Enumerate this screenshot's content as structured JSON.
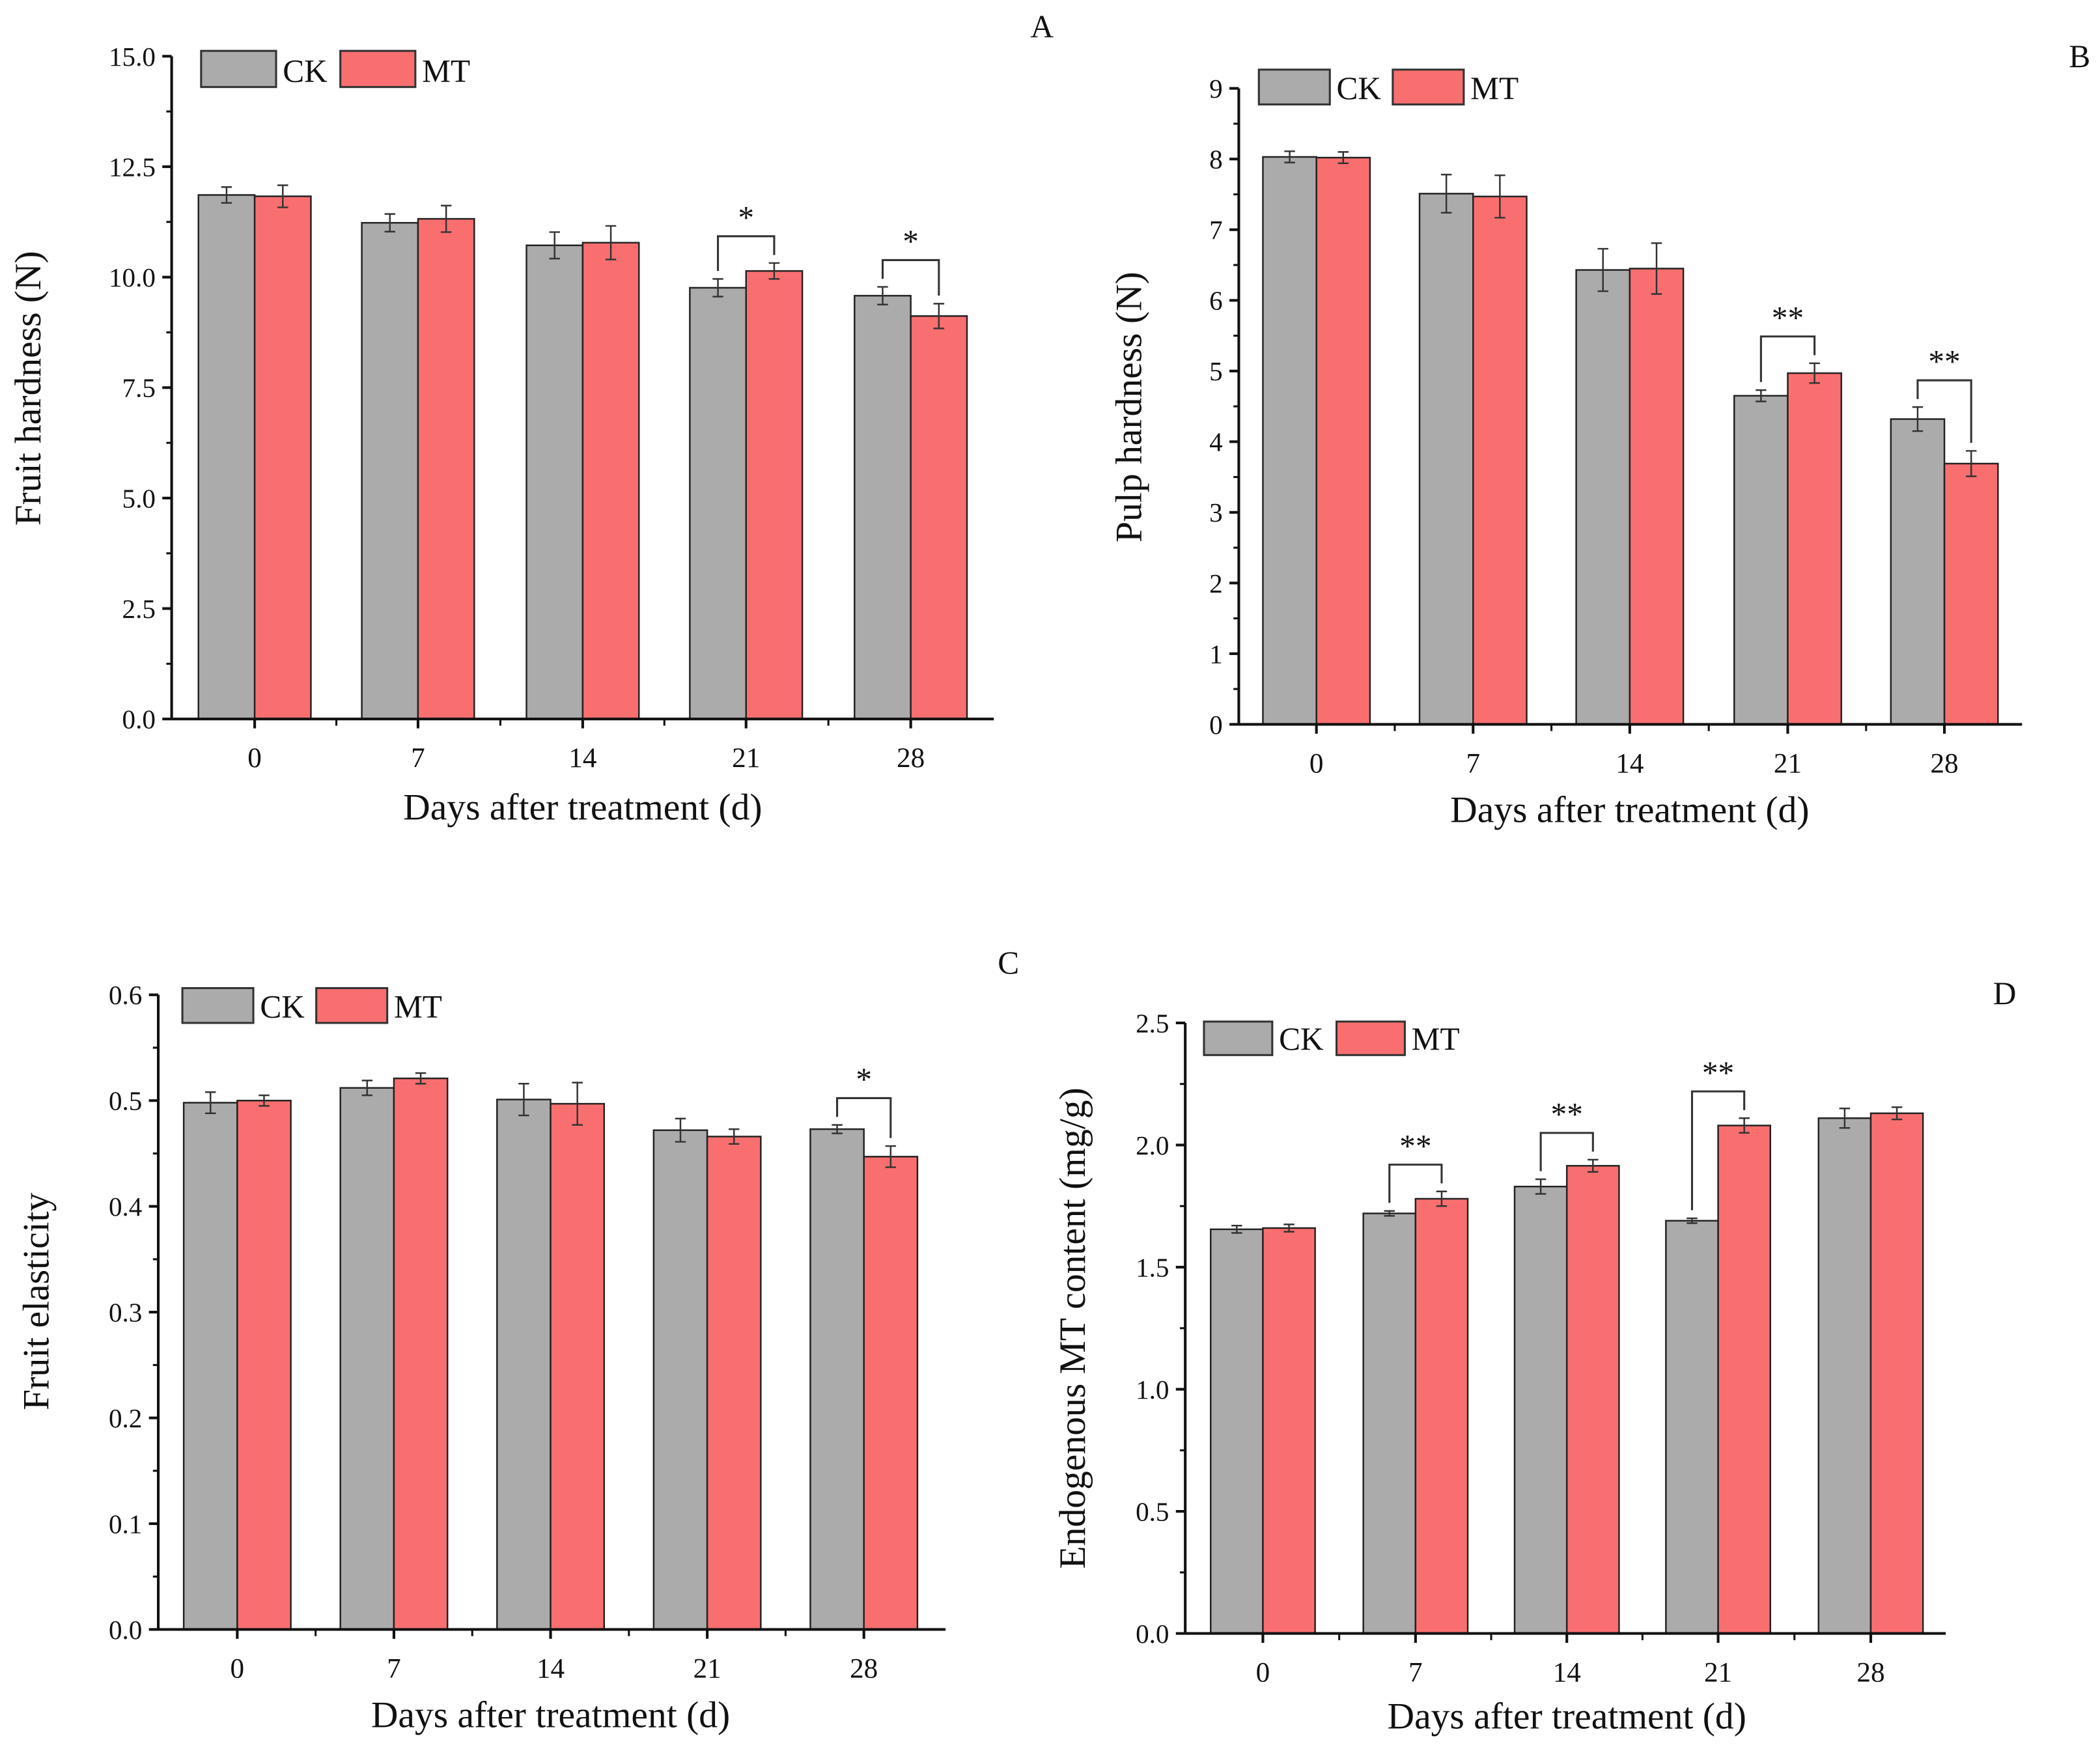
{
  "colors": {
    "CK": "#ababab",
    "MT": "#f96f70",
    "axis": "#111111"
  },
  "legend": [
    "CK",
    "MT"
  ],
  "chart_data": [
    {
      "panel": "A",
      "type": "bar",
      "title": "",
      "xlabel": "Days after treatment (d)",
      "ylabel": "Fruit hardness (N)",
      "categories": [
        "0",
        "7",
        "14",
        "21",
        "28"
      ],
      "ylim": [
        0,
        15
      ],
      "yticks": [
        "0.0",
        "2.5",
        "5.0",
        "7.5",
        "10.0",
        "12.5",
        "15.0"
      ],
      "series": [
        {
          "name": "CK",
          "values": [
            11.86,
            11.23,
            10.72,
            9.76,
            9.58
          ],
          "errors": [
            0.18,
            0.2,
            0.3,
            0.2,
            0.2
          ]
        },
        {
          "name": "MT",
          "values": [
            11.83,
            11.32,
            10.78,
            10.14,
            9.12
          ],
          "errors": [
            0.25,
            0.3,
            0.38,
            0.18,
            0.28
          ]
        }
      ],
      "significance": [
        {
          "category": "21",
          "label": "*"
        },
        {
          "category": "28",
          "label": "*"
        }
      ],
      "legend_position": "top-left"
    },
    {
      "panel": "B",
      "type": "bar",
      "title": "",
      "xlabel": "Days after treatment (d)",
      "ylabel": "Pulp hardness (N)",
      "categories": [
        "0",
        "7",
        "14",
        "21",
        "28"
      ],
      "ylim": [
        0,
        9
      ],
      "yticks": [
        "0",
        "1",
        "2",
        "3",
        "4",
        "5",
        "6",
        "7",
        "8",
        "9"
      ],
      "series": [
        {
          "name": "CK",
          "values": [
            8.03,
            7.51,
            6.43,
            4.65,
            4.32
          ],
          "errors": [
            0.08,
            0.27,
            0.3,
            0.08,
            0.17
          ]
        },
        {
          "name": "MT",
          "values": [
            8.02,
            7.47,
            6.45,
            4.97,
            3.69
          ],
          "errors": [
            0.08,
            0.3,
            0.36,
            0.14,
            0.18
          ]
        }
      ],
      "significance": [
        {
          "category": "21",
          "label": "**"
        },
        {
          "category": "28",
          "label": "**"
        }
      ],
      "legend_position": "top-left"
    },
    {
      "panel": "C",
      "type": "bar",
      "title": "",
      "xlabel": "Days after treatment (d)",
      "ylabel": "Fruit elasticity",
      "categories": [
        "0",
        "7",
        "14",
        "21",
        "28"
      ],
      "ylim": [
        0,
        0.6
      ],
      "yticks": [
        "0.0",
        "0.1",
        "0.2",
        "0.3",
        "0.4",
        "0.5",
        "0.6"
      ],
      "series": [
        {
          "name": "CK",
          "values": [
            0.498,
            0.512,
            0.501,
            0.472,
            0.473
          ],
          "errors": [
            0.01,
            0.007,
            0.015,
            0.011,
            0.004
          ]
        },
        {
          "name": "MT",
          "values": [
            0.5,
            0.521,
            0.497,
            0.466,
            0.447
          ],
          "errors": [
            0.005,
            0.005,
            0.02,
            0.007,
            0.01
          ]
        }
      ],
      "significance": [
        {
          "category": "28",
          "label": "*"
        }
      ],
      "legend_position": "top-left"
    },
    {
      "panel": "D",
      "type": "bar",
      "title": "",
      "xlabel": "Days after treatment (d)",
      "ylabel": "Endogenous MT content (mg/g)",
      "categories": [
        "0",
        "7",
        "14",
        "21",
        "28"
      ],
      "ylim": [
        0,
        2.5
      ],
      "yticks": [
        "0.0",
        "0.5",
        "1.0",
        "1.5",
        "2.0",
        "2.5"
      ],
      "series": [
        {
          "name": "CK",
          "values": [
            1.655,
            1.72,
            1.83,
            1.69,
            2.11
          ],
          "errors": [
            0.015,
            0.01,
            0.03,
            0.01,
            0.04
          ]
        },
        {
          "name": "MT",
          "values": [
            1.66,
            1.78,
            1.915,
            2.08,
            2.13
          ],
          "errors": [
            0.015,
            0.03,
            0.025,
            0.03,
            0.025
          ]
        }
      ],
      "significance": [
        {
          "category": "7",
          "label": "**"
        },
        {
          "category": "14",
          "label": "**"
        },
        {
          "category": "21",
          "label": "**"
        }
      ],
      "legend_position": "top-left"
    }
  ]
}
